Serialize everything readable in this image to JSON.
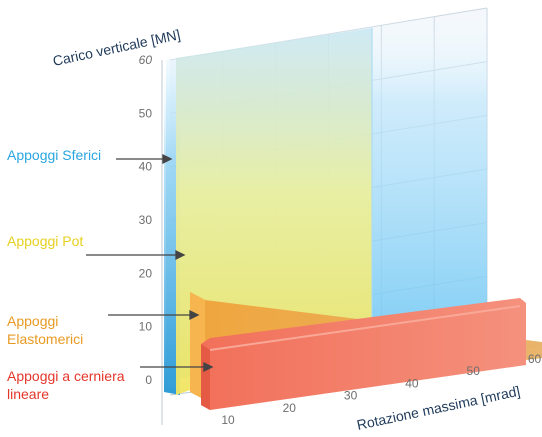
{
  "chart_data": {
    "type": "bar",
    "title": "",
    "ylabel": "Carico verticale [MN]",
    "xlabel": "Rotazione massima [mrad]",
    "y_ticks": [
      "0",
      "10",
      "20",
      "30",
      "40",
      "50",
      "60"
    ],
    "x_ticks": [
      "10",
      "20",
      "30",
      "40",
      "50",
      "60"
    ],
    "ylim": [
      0,
      60
    ],
    "xlim": [
      0,
      60
    ],
    "grid": true,
    "series": [
      {
        "name": "Appoggi Sferici",
        "color": "#3aa7e0",
        "rotation_max": 35,
        "load_max": 60,
        "shape": "block"
      },
      {
        "name": "Appoggi Pot",
        "color": "#e8dc2a",
        "rotation_max": 35,
        "load_max": 52,
        "shape": "block"
      },
      {
        "name": "Appoggi Elastomerici",
        "color": "#e9a13c",
        "rotation_max": 62,
        "load_max": 18,
        "load_at_max_rotation": 2,
        "shape": "wedge"
      },
      {
        "name": "Appoggi a cerniera lineare",
        "color": "#ef6f58",
        "rotation_max": 60,
        "load_max": 12,
        "shape": "slab"
      }
    ]
  }
}
